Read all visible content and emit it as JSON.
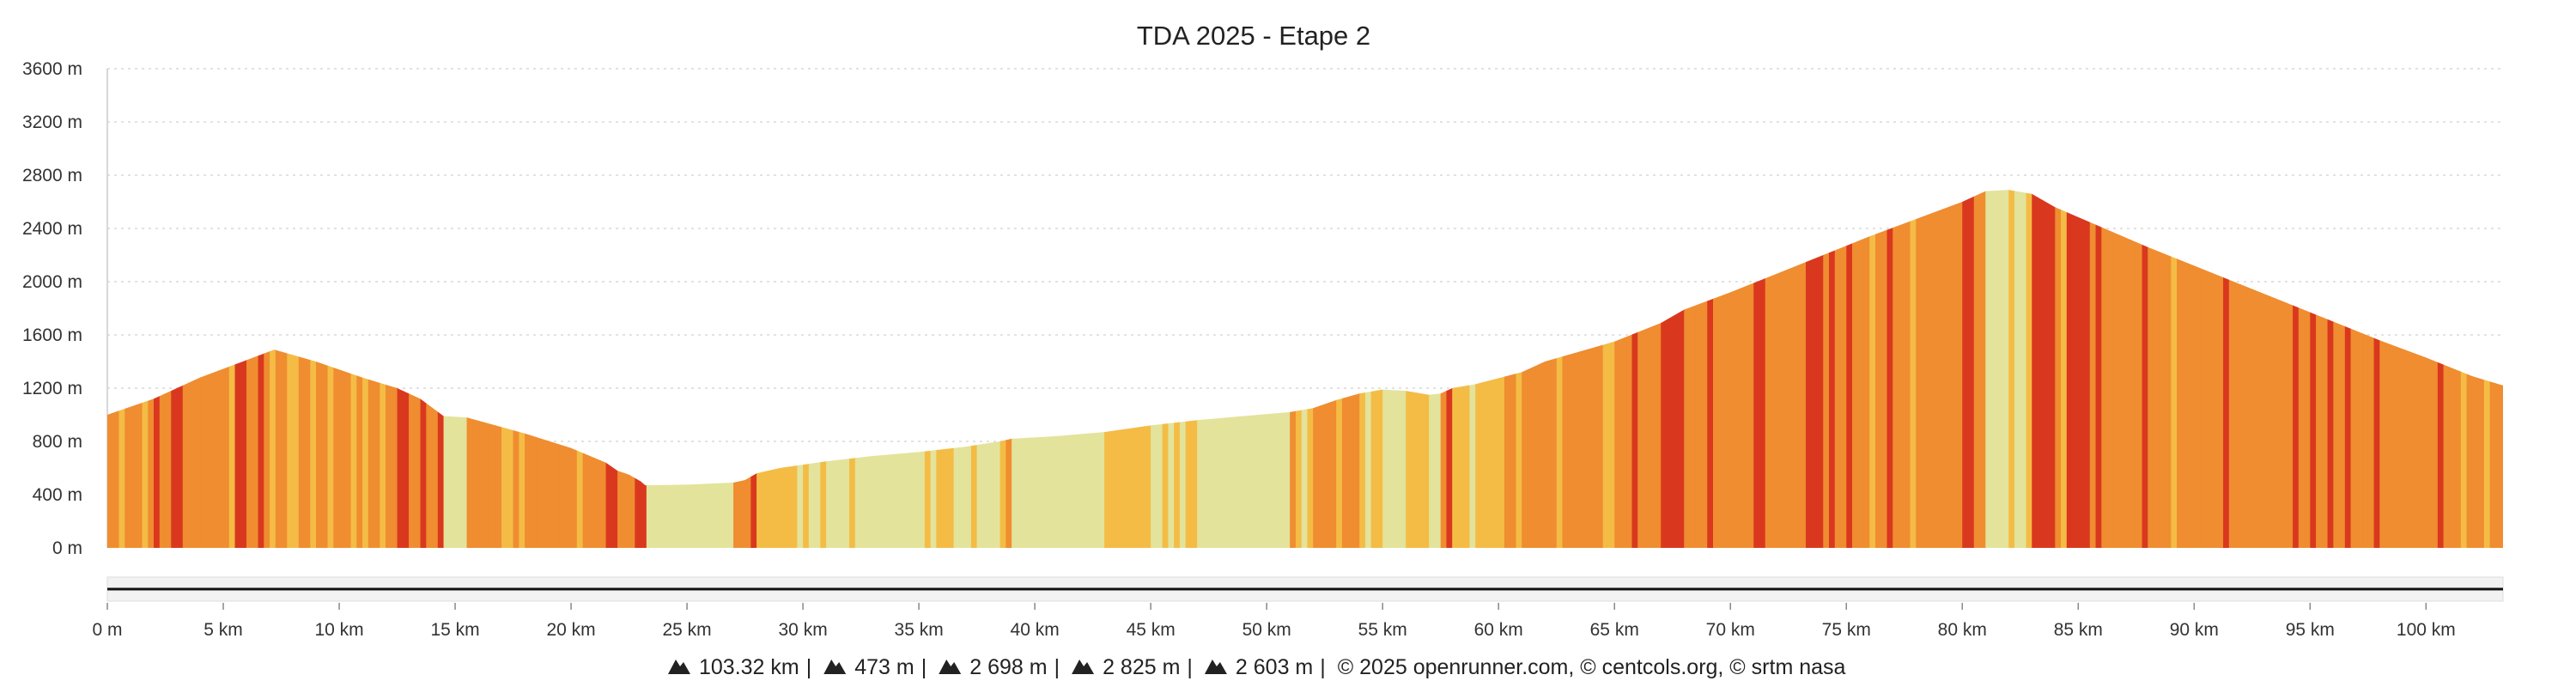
{
  "chart_data": {
    "type": "area",
    "title": "TDA 2025 - Etape 2",
    "xlabel": "",
    "ylabel": "",
    "ylim": [
      0,
      3600
    ],
    "xlim": [
      0,
      103.32
    ],
    "grid": true,
    "y_ticks": [
      "0 m",
      "400 m",
      "800 m",
      "1200 m",
      "1600 m",
      "2000 m",
      "2400 m",
      "2800 m",
      "3200 m",
      "3600 m"
    ],
    "x_ticks": [
      "0 m",
      "5 km",
      "10 km",
      "15 km",
      "20 km",
      "25 km",
      "30 km",
      "35 km",
      "40 km",
      "45 km",
      "50 km",
      "55 km",
      "60 km",
      "65 km",
      "70 km",
      "75 km",
      "80 km",
      "85 km",
      "90 km",
      "95 km",
      "100 km"
    ],
    "x": [
      0,
      2,
      4,
      6,
      7.2,
      9,
      11,
      12.5,
      13.5,
      14.5,
      15.5,
      18,
      20,
      21.5,
      22,
      22.5,
      23,
      23.2,
      25,
      27,
      27.5,
      28,
      29,
      31,
      33,
      35,
      37,
      38.5,
      39,
      40,
      41,
      43,
      45,
      47,
      49,
      51,
      52,
      53,
      54,
      55,
      56,
      57,
      57.5,
      58,
      59,
      61,
      62,
      63,
      65,
      66,
      67,
      68,
      70,
      72,
      74,
      76,
      78,
      80,
      81,
      82,
      83,
      84,
      86,
      88,
      90,
      92,
      94,
      96,
      98,
      100,
      102,
      103.32
    ],
    "elevation": [
      1000,
      1120,
      1280,
      1410,
      1490,
      1400,
      1280,
      1200,
      1120,
      990,
      980,
      860,
      750,
      640,
      580,
      550,
      500,
      470,
      475,
      490,
      510,
      560,
      600,
      650,
      690,
      720,
      760,
      800,
      820,
      830,
      840,
      870,
      920,
      960,
      990,
      1020,
      1050,
      1110,
      1160,
      1190,
      1180,
      1150,
      1160,
      1200,
      1230,
      1320,
      1400,
      1450,
      1550,
      1620,
      1690,
      1790,
      1920,
      2060,
      2200,
      2340,
      2470,
      2600,
      2680,
      2690,
      2660,
      2560,
      2410,
      2260,
      2120,
      1980,
      1840,
      1700,
      1560,
      1430,
      1290,
      1220
    ],
    "gradient_colors": {
      "flat": "#e3e39b",
      "moderate": "#f4bc45",
      "steep": "#ef8d30",
      "very_steep": "#d9381e"
    },
    "footer": {
      "distance": "103.32 km",
      "min_elevation": "473 m",
      "max_elevation": "2 698 m",
      "elevation_gain": "2 825 m",
      "elevation_loss": "2 603 m",
      "credits": "© 2025 openrunner.com, © centcols.org, © srtm nasa"
    },
    "footer_separator": "|",
    "icon_names": [
      "distance-icon",
      "min-elevation-icon",
      "max-elevation-icon",
      "elevation-gain-icon",
      "elevation-loss-icon"
    ]
  }
}
